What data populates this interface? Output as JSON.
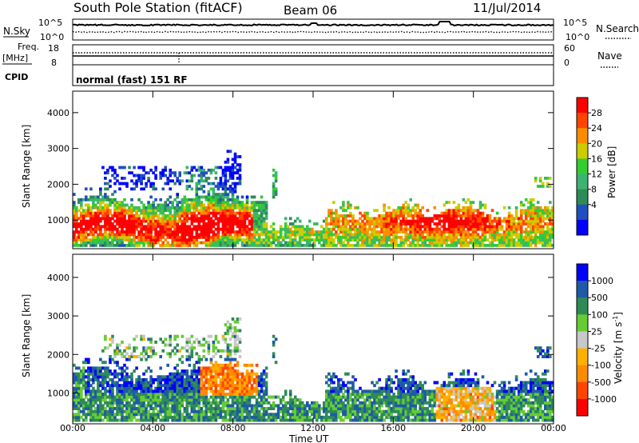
{
  "header": {
    "station": "South Pole Station (fitACF)",
    "beam": "Beam 06",
    "date": "11/Jul/2014"
  },
  "top_panels": {
    "nsky_label": "N.Sky",
    "nsearch_label": "N.Search",
    "nsky_ticks": [
      "10^5",
      "10^0"
    ],
    "nsearch_ticks": [
      "10^5",
      "10^0"
    ],
    "freq_label_1": "Freq.",
    "freq_label_2": "[MHz]",
    "freq_ticks": [
      "18",
      "8"
    ],
    "nave_label": "Nave",
    "nave_ticks": [
      "60",
      "0"
    ],
    "cpid_label": "CPID",
    "cpid_text": "normal (fast) 151 RF"
  },
  "colors": {
    "power_scale": [
      "#0000ff",
      "#2050c0",
      "#2e8b57",
      "#3cb371",
      "#32cd32",
      "#cccc00",
      "#ff8c00",
      "#ff4500",
      "#ff0000"
    ],
    "velocity_scale": [
      "#ff0000",
      "#ff4500",
      "#ff8c00",
      "#ffb000",
      "#c8c8c8",
      "#66cc33",
      "#2e8b57",
      "#1e5aa8",
      "#0000ff"
    ]
  },
  "chart_data": [
    {
      "type": "heatmap",
      "name": "power",
      "xlabel": "",
      "ylabel": "Slant Range [km]",
      "x_ticks": [
        "00:00",
        "04:00",
        "08:00",
        "12:00",
        "16:00",
        "20:00",
        "00:00"
      ],
      "y_ticks": [
        1000,
        2000,
        3000,
        4000
      ],
      "xlim": [
        0,
        24
      ],
      "ylim": [
        200,
        4600
      ],
      "colorbar_label": "Power [dB]",
      "colorbar_ticks": [
        "4",
        "8",
        "12",
        "16",
        "20",
        "24",
        "28"
      ],
      "colorbar_range": [
        0,
        32
      ]
    },
    {
      "type": "heatmap",
      "name": "velocity",
      "xlabel": "Time UT",
      "ylabel": "Slant Range [km]",
      "x_ticks": [
        "00:00",
        "04:00",
        "08:00",
        "12:00",
        "16:00",
        "20:00",
        "00:00"
      ],
      "y_ticks": [
        1000,
        2000,
        3000,
        4000
      ],
      "xlim": [
        0,
        24
      ],
      "ylim": [
        200,
        4600
      ],
      "colorbar_label": "Velocity [m s",
      "colorbar_label_sup": "-1",
      "colorbar_label_end": "]",
      "colorbar_ticks": [
        "1000",
        "500",
        "100",
        "25",
        "-25",
        "-100",
        "-500",
        "-1000"
      ]
    }
  ]
}
